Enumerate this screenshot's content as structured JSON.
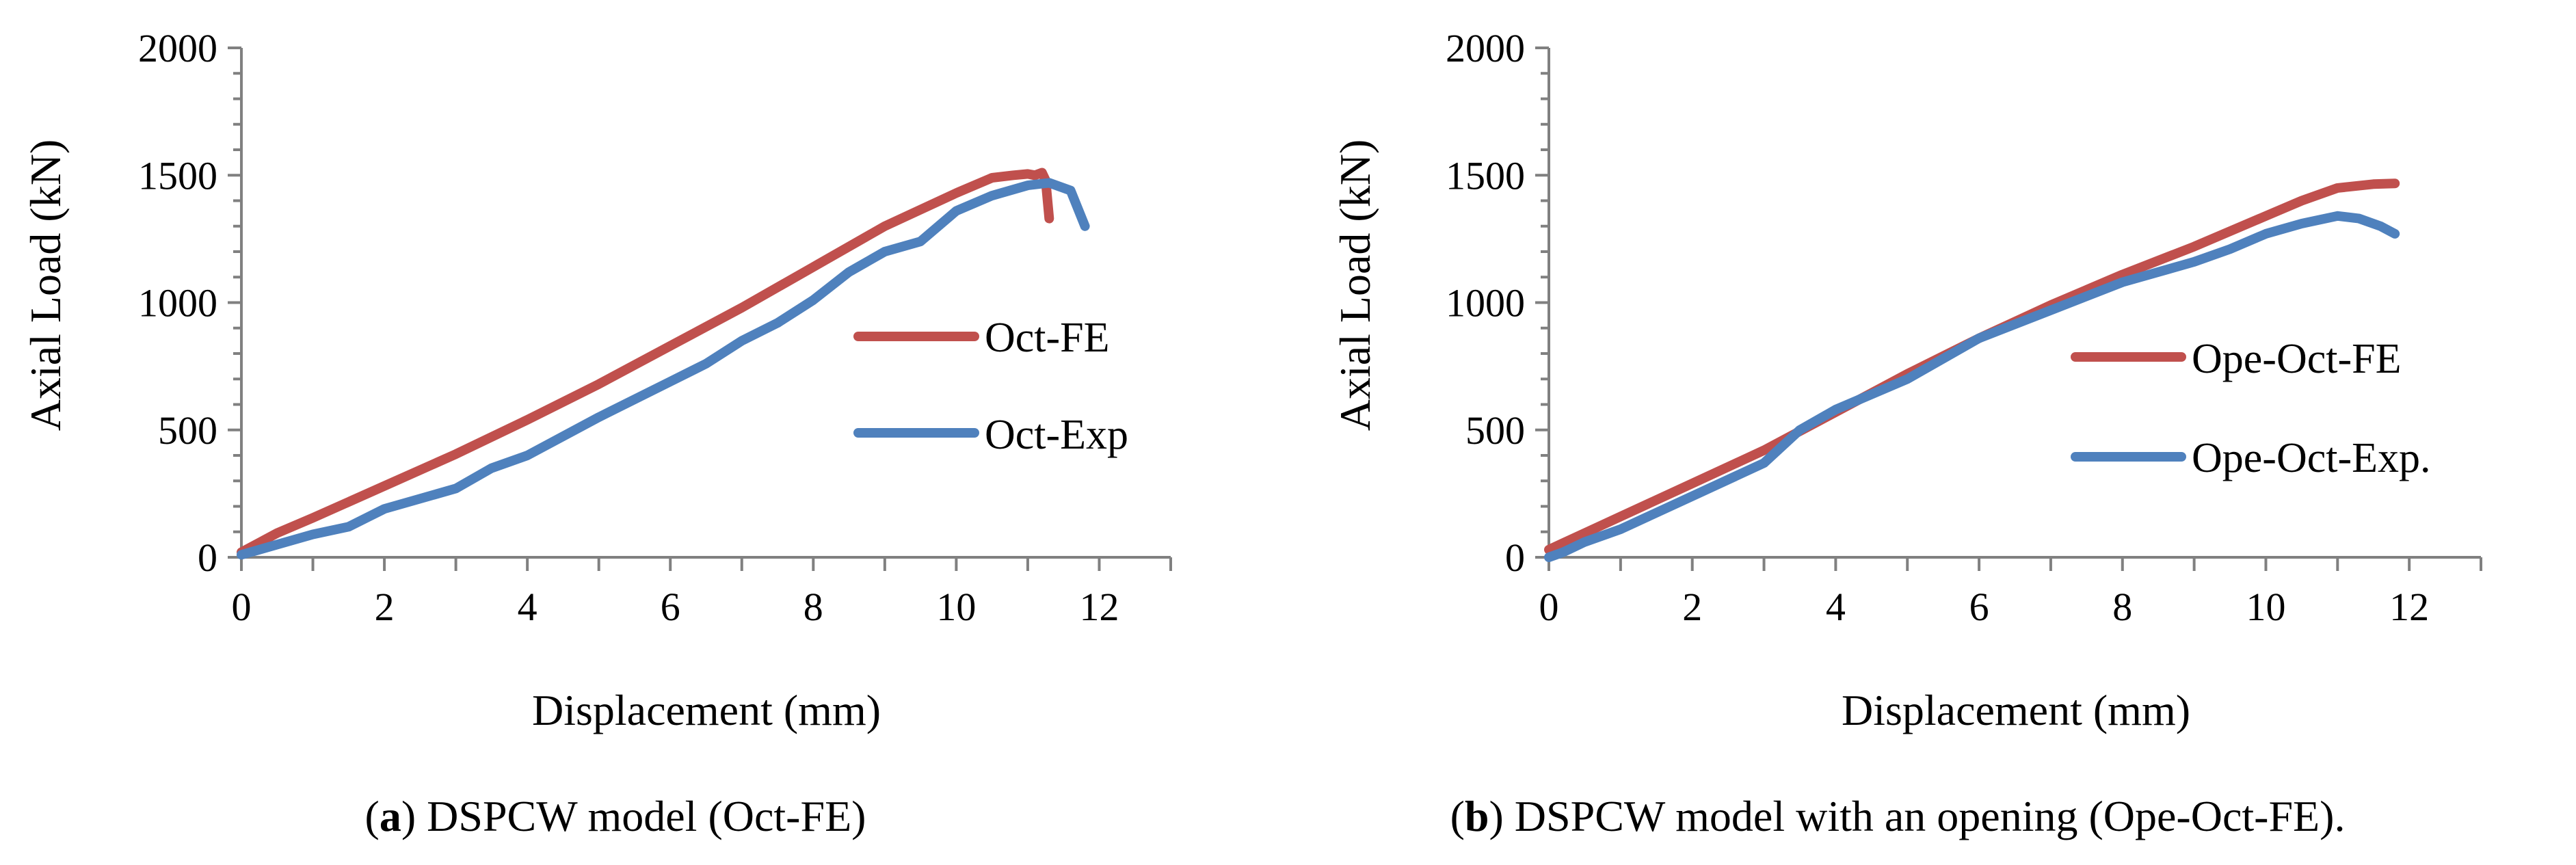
{
  "colors": {
    "fe": "#C0504D",
    "exp": "#4F81BD",
    "axis": "#808080",
    "text": "#000000"
  },
  "chart_data": [
    {
      "type": "line",
      "panel_letter": "a",
      "caption_text": ") DSPCW model (Oct-FE)",
      "xlabel": "Displacement (mm)",
      "ylabel": "Axial Load (kN)",
      "xlim": [
        0,
        13
      ],
      "ylim": [
        0,
        2000
      ],
      "x_ticks": [
        "0",
        "2",
        "4",
        "6",
        "8",
        "10",
        "12"
      ],
      "y_ticks": [
        "0",
        "500",
        "1000",
        "1500",
        "2000"
      ],
      "legend_position": "right",
      "series": [
        {
          "name": "Oct-FE",
          "color_key": "fe",
          "points": [
            [
              0,
              20
            ],
            [
              0.5,
              95
            ],
            [
              1,
              155
            ],
            [
              2,
              280
            ],
            [
              3,
              405
            ],
            [
              4,
              540
            ],
            [
              5,
              680
            ],
            [
              6,
              830
            ],
            [
              7,
              980
            ],
            [
              8,
              1140
            ],
            [
              9,
              1300
            ],
            [
              10,
              1430
            ],
            [
              10.5,
              1490
            ],
            [
              10.8,
              1500
            ],
            [
              11,
              1505
            ],
            [
              11.1,
              1500
            ],
            [
              11.2,
              1510
            ],
            [
              11.25,
              1480
            ],
            [
              11.3,
              1330
            ]
          ]
        },
        {
          "name": "Oct-Exp",
          "color_key": "exp",
          "points": [
            [
              0,
              10
            ],
            [
              0.5,
              50
            ],
            [
              1,
              90
            ],
            [
              1.5,
              120
            ],
            [
              2,
              190
            ],
            [
              3,
              270
            ],
            [
              3.5,
              350
            ],
            [
              4,
              400
            ],
            [
              5,
              550
            ],
            [
              6,
              690
            ],
            [
              6.5,
              760
            ],
            [
              7,
              850
            ],
            [
              7.5,
              920
            ],
            [
              8,
              1010
            ],
            [
              8.5,
              1120
            ],
            [
              9,
              1200
            ],
            [
              9.5,
              1240
            ],
            [
              10,
              1360
            ],
            [
              10.5,
              1420
            ],
            [
              11,
              1460
            ],
            [
              11.3,
              1470
            ],
            [
              11.6,
              1440
            ],
            [
              11.8,
              1300
            ]
          ]
        }
      ]
    },
    {
      "type": "line",
      "panel_letter": "b",
      "caption_text": ") DSPCW model with an opening (Ope-Oct-FE).",
      "xlabel": "Displacement (mm)",
      "ylabel": "Axial Load (kN)",
      "xlim": [
        0,
        13
      ],
      "ylim": [
        0,
        2000
      ],
      "x_ticks": [
        "0",
        "2",
        "4",
        "6",
        "8",
        "10",
        "12"
      ],
      "y_ticks": [
        "0",
        "500",
        "1000",
        "1500",
        "2000"
      ],
      "legend_position": "right",
      "series": [
        {
          "name": "Ope-Oct-FE",
          "color_key": "fe",
          "points": [
            [
              0,
              30
            ],
            [
              0.5,
              95
            ],
            [
              1,
              160
            ],
            [
              2,
              290
            ],
            [
              3,
              420
            ],
            [
              4,
              570
            ],
            [
              5,
              720
            ],
            [
              6,
              860
            ],
            [
              7,
              990
            ],
            [
              8,
              1110
            ],
            [
              9,
              1220
            ],
            [
              10,
              1340
            ],
            [
              10.5,
              1400
            ],
            [
              11,
              1450
            ],
            [
              11.5,
              1465
            ],
            [
              11.8,
              1468
            ]
          ]
        },
        {
          "name": "Ope-Oct-Exp.",
          "color_key": "exp",
          "points": [
            [
              0,
              0
            ],
            [
              0.2,
              20
            ],
            [
              0.5,
              60
            ],
            [
              1,
              110
            ],
            [
              2,
              240
            ],
            [
              3,
              370
            ],
            [
              3.5,
              500
            ],
            [
              4,
              580
            ],
            [
              5,
              700
            ],
            [
              6,
              860
            ],
            [
              7,
              970
            ],
            [
              8,
              1080
            ],
            [
              9,
              1160
            ],
            [
              9.5,
              1210
            ],
            [
              10,
              1270
            ],
            [
              10.5,
              1310
            ],
            [
              11,
              1340
            ],
            [
              11.3,
              1330
            ],
            [
              11.6,
              1300
            ],
            [
              11.8,
              1270
            ]
          ]
        }
      ]
    }
  ]
}
